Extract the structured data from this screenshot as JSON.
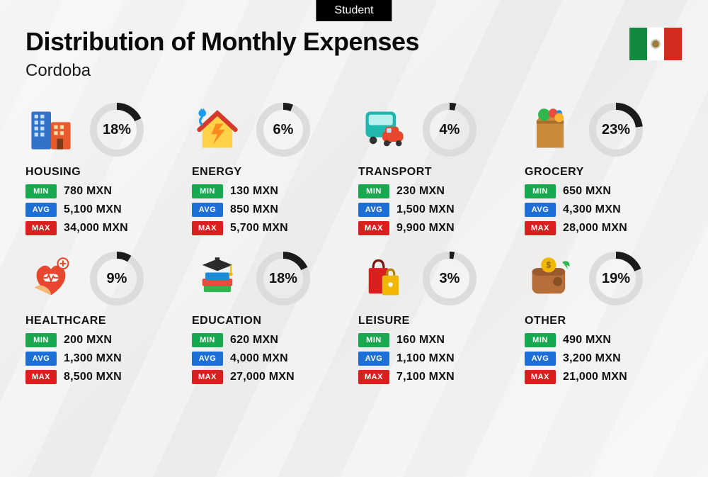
{
  "tag": "Student",
  "title": "Distribution of Monthly Expenses",
  "subtitle": "Cordoba",
  "flag": {
    "left": "#128a3d",
    "middle": "#ffffff",
    "right": "#d52b1e"
  },
  "currency": "MXN",
  "badges": {
    "min": {
      "label": "MIN",
      "color": "#18a84f"
    },
    "avg": {
      "label": "AVG",
      "color": "#1d6fd6"
    },
    "max": {
      "label": "MAX",
      "color": "#d9201e"
    }
  },
  "donut": {
    "track": "#dcdcdc",
    "arc": "#1b1b1b",
    "thickness": 10,
    "radius": 33
  },
  "categories": [
    {
      "key": "housing",
      "title": "HOUSING",
      "pct": 18,
      "min": "780 MXN",
      "avg": "5,100 MXN",
      "max": "34,000 MXN"
    },
    {
      "key": "energy",
      "title": "ENERGY",
      "pct": 6,
      "min": "130 MXN",
      "avg": "850 MXN",
      "max": "5,700 MXN"
    },
    {
      "key": "transport",
      "title": "TRANSPORT",
      "pct": 4,
      "min": "230 MXN",
      "avg": "1,500 MXN",
      "max": "9,900 MXN"
    },
    {
      "key": "grocery",
      "title": "GROCERY",
      "pct": 23,
      "min": "650 MXN",
      "avg": "4,300 MXN",
      "max": "28,000 MXN"
    },
    {
      "key": "healthcare",
      "title": "HEALTHCARE",
      "pct": 9,
      "min": "200 MXN",
      "avg": "1,300 MXN",
      "max": "8,500 MXN"
    },
    {
      "key": "education",
      "title": "EDUCATION",
      "pct": 18,
      "min": "620 MXN",
      "avg": "4,000 MXN",
      "max": "27,000 MXN"
    },
    {
      "key": "leisure",
      "title": "LEISURE",
      "pct": 3,
      "min": "160 MXN",
      "avg": "1,100 MXN",
      "max": "7,100 MXN"
    },
    {
      "key": "other",
      "title": "OTHER",
      "pct": 19,
      "min": "490 MXN",
      "avg": "3,200 MXN",
      "max": "21,000 MXN"
    }
  ]
}
